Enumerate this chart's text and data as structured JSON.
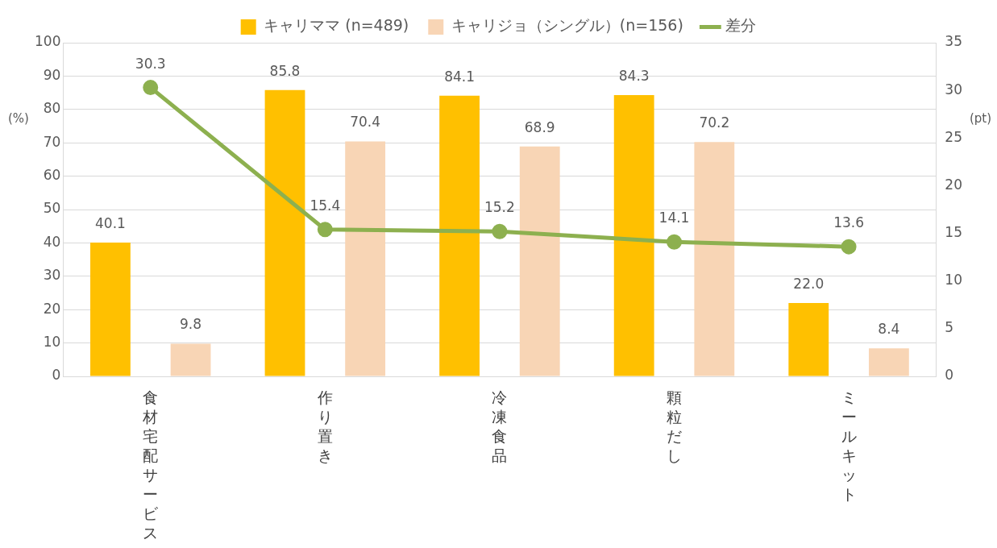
{
  "chart_data": {
    "type": "bar",
    "categories": [
      "食材宅配サービス",
      "作り置き",
      "冷凍食品",
      "顆粒だし",
      "ミールキット"
    ],
    "series": [
      {
        "name": "キャリママ (n=489)",
        "color": "#ffc000",
        "values": [
          40.1,
          85.8,
          84.1,
          84.3,
          22.0
        ],
        "value_labels": [
          "40.1",
          "85.8",
          "84.1",
          "84.3",
          "22.0"
        ]
      },
      {
        "name": "キャリジョ（シングル）(n=156)",
        "color": "#f8d5b5",
        "values": [
          9.8,
          70.4,
          68.9,
          70.2,
          8.4
        ],
        "value_labels": [
          "9.8",
          "70.4",
          "68.9",
          "70.2",
          "8.4"
        ]
      },
      {
        "name": "差分",
        "type": "line",
        "axis": "y2",
        "color": "#8db04f",
        "values": [
          30.3,
          15.4,
          15.2,
          14.1,
          13.6
        ],
        "value_labels": [
          "30.3",
          "15.4",
          "15.2",
          "14.1",
          "13.6"
        ]
      }
    ],
    "ylabel": "(%)",
    "y2label": "(pt)",
    "ylim": [
      0,
      100
    ],
    "yticks": [
      0,
      10,
      20,
      30,
      40,
      50,
      60,
      70,
      80,
      90,
      100
    ],
    "y2lim": [
      0,
      35
    ],
    "y2ticks": [
      0,
      5,
      10,
      15,
      20,
      25,
      30,
      35
    ],
    "grid": "y",
    "legend": "top",
    "marker": "circle",
    "line_style": "solid"
  }
}
